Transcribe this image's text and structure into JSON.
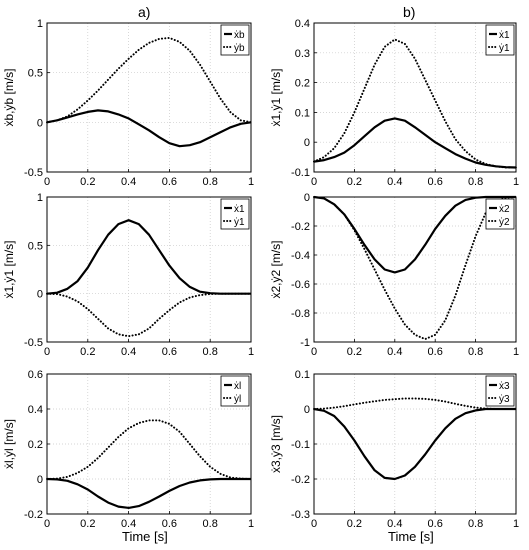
{
  "column_labels": [
    "a)",
    "b)"
  ],
  "x_axis_label": "Time [s]",
  "chart_data": [
    {
      "type": "line",
      "panel": "a-1",
      "grid": true,
      "xlabel": "",
      "ylabel": "ẋb,ẏb [m/s]",
      "xlim": [
        0,
        1
      ],
      "ylim": [
        -0.5,
        1
      ],
      "xticks": [
        0,
        0.2,
        0.4,
        0.6,
        0.8,
        1
      ],
      "yticks": [
        -0.5,
        0,
        0.5,
        1
      ],
      "xtick_labels": [
        "0",
        "0.2",
        "0.4",
        "0.6",
        "0.8",
        "1"
      ],
      "ytick_labels": [
        "-0.5",
        "0",
        "0.5",
        "1"
      ],
      "legend": {
        "entries": [
          "ẋb",
          "ẏb"
        ],
        "position": "top-right"
      },
      "series": [
        {
          "name": "ẋb",
          "style": "solid",
          "x": [
            0,
            0.05,
            0.1,
            0.15,
            0.2,
            0.25,
            0.3,
            0.35,
            0.4,
            0.45,
            0.5,
            0.55,
            0.6,
            0.65,
            0.7,
            0.75,
            0.8,
            0.85,
            0.9,
            0.95,
            1
          ],
          "y": [
            0,
            0.02,
            0.05,
            0.08,
            0.105,
            0.12,
            0.11,
            0.08,
            0.04,
            -0.02,
            -0.08,
            -0.15,
            -0.21,
            -0.24,
            -0.23,
            -0.2,
            -0.15,
            -0.1,
            -0.05,
            -0.015,
            0
          ]
        },
        {
          "name": "ẏb",
          "style": "dotted",
          "x": [
            0,
            0.05,
            0.1,
            0.15,
            0.2,
            0.25,
            0.3,
            0.35,
            0.4,
            0.45,
            0.5,
            0.55,
            0.6,
            0.65,
            0.7,
            0.75,
            0.8,
            0.85,
            0.9,
            0.95,
            1
          ],
          "y": [
            0,
            0.02,
            0.06,
            0.13,
            0.22,
            0.32,
            0.43,
            0.54,
            0.64,
            0.73,
            0.8,
            0.84,
            0.85,
            0.81,
            0.72,
            0.58,
            0.41,
            0.24,
            0.1,
            0.02,
            0
          ]
        }
      ]
    },
    {
      "type": "line",
      "panel": "b-1",
      "grid": true,
      "xlabel": "",
      "ylabel": "ẋ1,ẏ1 [m/s]",
      "xlim": [
        0,
        1
      ],
      "ylim": [
        -0.1,
        0.4
      ],
      "xticks": [
        0,
        0.2,
        0.4,
        0.6,
        0.8,
        1
      ],
      "yticks": [
        -0.1,
        0,
        0.1,
        0.2,
        0.3,
        0.4
      ],
      "xtick_labels": [
        "0",
        "0.2",
        "0.4",
        "0.6",
        "0.8",
        "1"
      ],
      "ytick_labels": [
        "-0.1",
        "0",
        "0.1",
        "0.2",
        "0.3",
        "0.4"
      ],
      "legend": {
        "entries": [
          "ẋ1",
          "ẏ1"
        ],
        "position": "top-right"
      },
      "series": [
        {
          "name": "ẋ1",
          "style": "solid",
          "x": [
            0,
            0.05,
            0.1,
            0.15,
            0.2,
            0.25,
            0.3,
            0.35,
            0.4,
            0.45,
            0.5,
            0.55,
            0.6,
            0.65,
            0.7,
            0.75,
            0.8,
            0.85,
            0.9,
            0.95,
            1
          ],
          "y": [
            -0.065,
            -0.06,
            -0.05,
            -0.035,
            -0.01,
            0.02,
            0.05,
            0.072,
            0.08,
            0.072,
            0.05,
            0.025,
            0.0,
            -0.02,
            -0.04,
            -0.055,
            -0.068,
            -0.076,
            -0.081,
            -0.084,
            -0.085
          ]
        },
        {
          "name": "ẏ1",
          "style": "dotted",
          "x": [
            0,
            0.05,
            0.1,
            0.15,
            0.2,
            0.25,
            0.3,
            0.35,
            0.4,
            0.45,
            0.5,
            0.55,
            0.6,
            0.65,
            0.7,
            0.75,
            0.8,
            0.85,
            0.9,
            0.95,
            1
          ],
          "y": [
            -0.065,
            -0.05,
            -0.02,
            0.03,
            0.1,
            0.18,
            0.26,
            0.32,
            0.345,
            0.33,
            0.28,
            0.21,
            0.14,
            0.07,
            0.01,
            -0.03,
            -0.058,
            -0.073,
            -0.081,
            -0.085,
            -0.085
          ]
        }
      ]
    },
    {
      "type": "line",
      "panel": "a-2",
      "grid": true,
      "xlabel": "",
      "ylabel": "ẋ1,ẏ1 [m/s]",
      "xlim": [
        0,
        1
      ],
      "ylim": [
        -0.5,
        1
      ],
      "xticks": [
        0,
        0.2,
        0.4,
        0.6,
        0.8,
        1
      ],
      "yticks": [
        -0.5,
        0,
        0.5,
        1
      ],
      "xtick_labels": [
        "0",
        "0.2",
        "0.4",
        "0.6",
        "0.8",
        "1"
      ],
      "ytick_labels": [
        "-0.5",
        "0",
        "0.5",
        "1"
      ],
      "legend": {
        "entries": [
          "ẋ1",
          "ẏ1"
        ],
        "position": "top-right"
      },
      "series": [
        {
          "name": "ẋ1",
          "style": "solid",
          "x": [
            0,
            0.05,
            0.1,
            0.15,
            0.2,
            0.25,
            0.3,
            0.35,
            0.4,
            0.45,
            0.5,
            0.55,
            0.6,
            0.65,
            0.7,
            0.75,
            0.8,
            0.85,
            0.9,
            0.95,
            1
          ],
          "y": [
            0,
            0.01,
            0.05,
            0.13,
            0.27,
            0.45,
            0.61,
            0.72,
            0.76,
            0.72,
            0.61,
            0.45,
            0.29,
            0.16,
            0.07,
            0.02,
            0.005,
            0,
            0,
            0,
            0
          ]
        },
        {
          "name": "ẏ1",
          "style": "dotted",
          "x": [
            0,
            0.05,
            0.1,
            0.15,
            0.2,
            0.25,
            0.3,
            0.35,
            0.4,
            0.45,
            0.5,
            0.55,
            0.6,
            0.65,
            0.7,
            0.75,
            0.8,
            0.85,
            0.9,
            0.95,
            1
          ],
          "y": [
            0,
            -0.005,
            -0.03,
            -0.08,
            -0.16,
            -0.26,
            -0.36,
            -0.42,
            -0.44,
            -0.42,
            -0.36,
            -0.26,
            -0.17,
            -0.09,
            -0.04,
            -0.015,
            -0.003,
            0,
            0,
            0,
            0
          ]
        }
      ]
    },
    {
      "type": "line",
      "panel": "b-2",
      "grid": true,
      "xlabel": "",
      "ylabel": "ẋ2,ẏ2 [m/s]",
      "xlim": [
        0,
        1
      ],
      "ylim": [
        -1,
        0
      ],
      "xticks": [
        0,
        0.2,
        0.4,
        0.6,
        0.8,
        1
      ],
      "yticks": [
        -1,
        -0.8,
        -0.6,
        -0.4,
        -0.2,
        0
      ],
      "xtick_labels": [
        "0",
        "0.2",
        "0.4",
        "0.6",
        "0.8",
        "1"
      ],
      "ytick_labels": [
        "-1",
        "-0.8",
        "-0.6",
        "-0.4",
        "-0.2",
        "0"
      ],
      "legend": {
        "entries": [
          "ẋ2",
          "ẏ2"
        ],
        "position": "top-right"
      },
      "series": [
        {
          "name": "ẋ2",
          "style": "solid",
          "x": [
            0,
            0.05,
            0.1,
            0.15,
            0.2,
            0.25,
            0.3,
            0.35,
            0.4,
            0.45,
            0.5,
            0.55,
            0.6,
            0.65,
            0.7,
            0.75,
            0.8,
            0.85,
            0.9,
            0.95,
            1
          ],
          "y": [
            0,
            -0.01,
            -0.05,
            -0.12,
            -0.22,
            -0.33,
            -0.43,
            -0.5,
            -0.52,
            -0.5,
            -0.43,
            -0.33,
            -0.22,
            -0.13,
            -0.06,
            -0.02,
            -0.005,
            0,
            0,
            0,
            0
          ]
        },
        {
          "name": "ẏ2",
          "style": "dotted",
          "x": [
            0,
            0.05,
            0.1,
            0.15,
            0.2,
            0.25,
            0.3,
            0.35,
            0.4,
            0.45,
            0.5,
            0.55,
            0.6,
            0.65,
            0.7,
            0.75,
            0.8,
            0.85,
            0.9,
            0.95,
            1
          ],
          "y": [
            0,
            -0.01,
            -0.05,
            -0.12,
            -0.23,
            -0.36,
            -0.5,
            -0.64,
            -0.77,
            -0.88,
            -0.95,
            -0.98,
            -0.95,
            -0.85,
            -0.68,
            -0.47,
            -0.27,
            -0.11,
            -0.03,
            -0.005,
            0
          ]
        }
      ]
    },
    {
      "type": "line",
      "panel": "a-3",
      "grid": true,
      "xlabel": "Time [s]",
      "ylabel": "ẋl,ẏl [m/s]",
      "xlim": [
        0,
        1
      ],
      "ylim": [
        -0.2,
        0.6
      ],
      "xticks": [
        0,
        0.2,
        0.4,
        0.6,
        0.8,
        1
      ],
      "yticks": [
        -0.2,
        0,
        0.2,
        0.4,
        0.6
      ],
      "xtick_labels": [
        "0",
        "0.2",
        "0.4",
        "0.6",
        "0.8",
        "1"
      ],
      "ytick_labels": [
        "-0.2",
        "0",
        "0.2",
        "0.4",
        "0.6"
      ],
      "legend": {
        "entries": [
          "ẋl",
          "ẏl"
        ],
        "position": "top-right"
      },
      "series": [
        {
          "name": "ẋl",
          "style": "solid",
          "x": [
            0,
            0.05,
            0.1,
            0.15,
            0.2,
            0.25,
            0.3,
            0.35,
            0.4,
            0.45,
            0.5,
            0.55,
            0.6,
            0.65,
            0.7,
            0.75,
            0.8,
            0.85,
            0.9,
            0.95,
            1
          ],
          "y": [
            0,
            -0.002,
            -0.01,
            -0.03,
            -0.06,
            -0.1,
            -0.135,
            -0.158,
            -0.165,
            -0.155,
            -0.13,
            -0.1,
            -0.068,
            -0.04,
            -0.02,
            -0.008,
            -0.002,
            0,
            0,
            0,
            0
          ]
        },
        {
          "name": "ẏl",
          "style": "dotted",
          "x": [
            0,
            0.05,
            0.1,
            0.15,
            0.2,
            0.25,
            0.3,
            0.35,
            0.4,
            0.45,
            0.5,
            0.55,
            0.6,
            0.65,
            0.7,
            0.75,
            0.8,
            0.85,
            0.9,
            0.95,
            1
          ],
          "y": [
            0,
            0.002,
            0.012,
            0.035,
            0.07,
            0.12,
            0.18,
            0.24,
            0.29,
            0.32,
            0.335,
            0.335,
            0.315,
            0.27,
            0.2,
            0.13,
            0.07,
            0.03,
            0.008,
            0.002,
            0
          ]
        }
      ]
    },
    {
      "type": "line",
      "panel": "b-3",
      "grid": true,
      "xlabel": "Time [s]",
      "ylabel": "ẋ3,ẏ3 [m/s]",
      "xlim": [
        0,
        1
      ],
      "ylim": [
        -0.3,
        0.1
      ],
      "xticks": [
        0,
        0.2,
        0.4,
        0.6,
        0.8,
        1
      ],
      "yticks": [
        -0.3,
        -0.2,
        -0.1,
        0,
        0.1
      ],
      "xtick_labels": [
        "0",
        "0.2",
        "0.4",
        "0.6",
        "0.8",
        "1"
      ],
      "ytick_labels": [
        "-0.3",
        "-0.2",
        "-0.1",
        "0",
        "0.1"
      ],
      "legend": {
        "entries": [
          "ẋ3",
          "ẏ3"
        ],
        "position": "top-right"
      },
      "series": [
        {
          "name": "ẋ3",
          "style": "solid",
          "x": [
            0,
            0.05,
            0.1,
            0.15,
            0.2,
            0.25,
            0.3,
            0.35,
            0.4,
            0.45,
            0.5,
            0.55,
            0.6,
            0.65,
            0.7,
            0.75,
            0.8,
            0.85,
            0.9,
            0.95,
            1
          ],
          "y": [
            0,
            -0.005,
            -0.02,
            -0.05,
            -0.09,
            -0.135,
            -0.175,
            -0.197,
            -0.2,
            -0.19,
            -0.165,
            -0.13,
            -0.09,
            -0.055,
            -0.028,
            -0.012,
            -0.004,
            0,
            0,
            0,
            0
          ]
        },
        {
          "name": "ẏ3",
          "style": "dotted",
          "x": [
            0,
            0.05,
            0.1,
            0.15,
            0.2,
            0.25,
            0.3,
            0.35,
            0.4,
            0.45,
            0.5,
            0.55,
            0.6,
            0.65,
            0.7,
            0.75,
            0.8,
            0.85,
            0.9,
            0.95,
            1
          ],
          "y": [
            0,
            0.001,
            0.004,
            0.008,
            0.013,
            0.018,
            0.022,
            0.026,
            0.028,
            0.03,
            0.03,
            0.029,
            0.026,
            0.021,
            0.015,
            0.009,
            0.004,
            0.001,
            0,
            0,
            0
          ]
        }
      ]
    }
  ]
}
